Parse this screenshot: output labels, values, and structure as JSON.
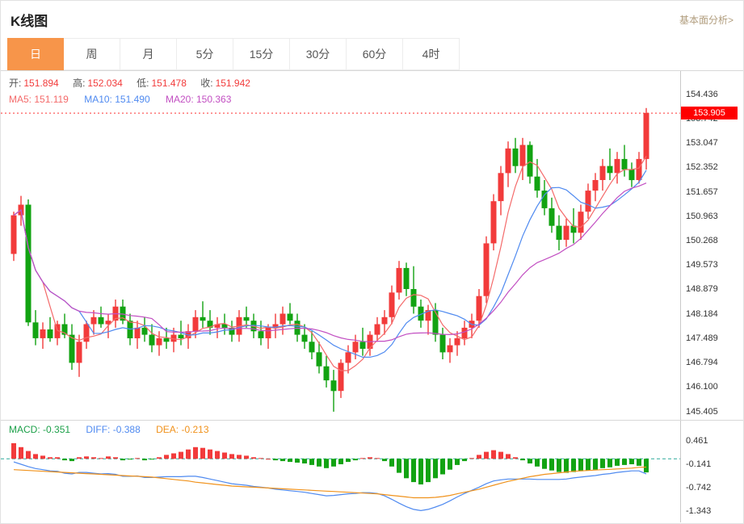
{
  "header": {
    "title": "K线图",
    "link": "基本面分析>"
  },
  "tabs": [
    {
      "label": "日",
      "active": true
    },
    {
      "label": "周",
      "active": false
    },
    {
      "label": "月",
      "active": false
    },
    {
      "label": "5分",
      "active": false
    },
    {
      "label": "15分",
      "active": false
    },
    {
      "label": "30分",
      "active": false
    },
    {
      "label": "60分",
      "active": false
    },
    {
      "label": "4时",
      "active": false
    }
  ],
  "info": {
    "ohlc": [
      {
        "label": "开:",
        "value": "151.894"
      },
      {
        "label": "高:",
        "value": "152.034"
      },
      {
        "label": "低:",
        "value": "151.478"
      },
      {
        "label": "收:",
        "value": "151.942"
      }
    ],
    "ma": [
      {
        "label": "MA5:",
        "value": "151.119",
        "color": "#f46a6a"
      },
      {
        "label": "MA10:",
        "value": "151.490",
        "color": "#4f8af0"
      },
      {
        "label": "MA20:",
        "value": "150.363",
        "color": "#c24fc2"
      }
    ]
  },
  "price_axis": [
    "154.436",
    "153.742",
    "153.047",
    "152.352",
    "151.657",
    "150.963",
    "150.268",
    "149.573",
    "148.879",
    "148.184",
    "147.489",
    "146.794",
    "146.100",
    "145.405"
  ],
  "current_price": "153.905",
  "macd_info": {
    "items": [
      {
        "label": "MACD:",
        "value": "-0.351",
        "color": "#1ca049"
      },
      {
        "label": "DIFF:",
        "value": "-0.388",
        "color": "#4f8af0"
      },
      {
        "label": "DEA:",
        "value": "-0.213",
        "color": "#f0921c"
      }
    ]
  },
  "macd_axis": [
    "0.461",
    "-0.141",
    "-0.742",
    "-1.343"
  ],
  "colors": {
    "accent": "#f7954a",
    "up": "#f23b3b",
    "down": "#12a312",
    "ma5": "#f46a6a",
    "ma10": "#4f8af0",
    "ma20": "#c24fc2",
    "diff": "#4f8af0",
    "dea": "#f0921c",
    "price_tag_bg": "#fe0000",
    "dotted_line": "#fe3333",
    "zero_line": "#2faa9b",
    "link": "#b09c7c"
  },
  "chart_data": [
    {
      "type": "candlestick",
      "title": "K线图",
      "interval": "日",
      "ylim": [
        145.405,
        154.9
      ],
      "y_ticks": [
        154.436,
        153.742,
        153.047,
        152.352,
        151.657,
        150.963,
        150.268,
        149.573,
        148.879,
        148.184,
        147.489,
        146.794,
        146.1,
        145.405
      ],
      "last_price": 153.905,
      "ma_periods": [
        5,
        10,
        20
      ],
      "ohlc": [
        [
          149.9,
          151.1,
          149.7,
          151.0
        ],
        [
          151.0,
          151.55,
          150.7,
          151.3
        ],
        [
          151.3,
          151.45,
          147.85,
          147.95
        ],
        [
          147.95,
          148.3,
          147.3,
          147.5
        ],
        [
          147.5,
          147.95,
          147.2,
          147.75
        ],
        [
          147.75,
          148.1,
          147.4,
          147.5
        ],
        [
          147.5,
          148.0,
          147.3,
          147.9
        ],
        [
          147.9,
          148.2,
          147.5,
          147.6
        ],
        [
          147.6,
          147.9,
          146.6,
          146.8
        ],
        [
          146.8,
          147.6,
          146.4,
          147.4
        ],
        [
          147.4,
          148.0,
          147.2,
          147.9
        ],
        [
          147.9,
          148.3,
          147.6,
          148.1
        ],
        [
          148.1,
          148.4,
          147.8,
          147.9
        ],
        [
          147.9,
          148.2,
          147.5,
          148.0
        ],
        [
          148.0,
          148.6,
          147.8,
          148.4
        ],
        [
          148.4,
          148.6,
          147.9,
          148.0
        ],
        [
          148.0,
          148.2,
          147.3,
          147.5
        ],
        [
          147.5,
          148.0,
          147.2,
          147.8
        ],
        [
          147.8,
          148.1,
          147.4,
          147.6
        ],
        [
          147.6,
          147.9,
          147.1,
          147.3
        ],
        [
          147.3,
          147.7,
          147.0,
          147.5
        ],
        [
          147.5,
          147.8,
          147.2,
          147.4
        ],
        [
          147.4,
          147.8,
          147.1,
          147.6
        ],
        [
          147.6,
          148.0,
          147.3,
          147.5
        ],
        [
          147.5,
          147.9,
          147.2,
          147.7
        ],
        [
          147.7,
          148.3,
          147.5,
          148.1
        ],
        [
          148.1,
          148.55,
          147.8,
          148.0
        ],
        [
          148.0,
          148.3,
          147.6,
          147.8
        ],
        [
          147.8,
          148.1,
          147.5,
          147.9
        ],
        [
          147.9,
          148.2,
          147.6,
          147.8
        ],
        [
          147.8,
          148.0,
          147.4,
          147.6
        ],
        [
          147.6,
          148.3,
          147.4,
          148.1
        ],
        [
          148.1,
          148.4,
          147.8,
          148.0
        ],
        [
          148.0,
          148.2,
          147.5,
          147.7
        ],
        [
          147.7,
          148.0,
          147.3,
          147.5
        ],
        [
          147.5,
          147.9,
          147.2,
          147.8
        ],
        [
          147.8,
          148.2,
          147.5,
          147.9
        ],
        [
          147.9,
          148.4,
          147.6,
          148.2
        ],
        [
          148.2,
          148.5,
          147.9,
          148.0
        ],
        [
          148.0,
          148.2,
          147.4,
          147.6
        ],
        [
          147.6,
          147.9,
          147.2,
          147.4
        ],
        [
          147.4,
          147.7,
          146.9,
          147.1
        ],
        [
          147.1,
          147.4,
          146.5,
          146.7
        ],
        [
          146.7,
          147.0,
          146.1,
          146.3
        ],
        [
          146.3,
          146.6,
          145.41,
          146.0
        ],
        [
          146.0,
          146.9,
          145.8,
          146.8
        ],
        [
          146.8,
          147.3,
          146.5,
          147.1
        ],
        [
          147.1,
          147.6,
          146.9,
          147.4
        ],
        [
          147.4,
          147.8,
          147.0,
          147.2
        ],
        [
          147.2,
          147.7,
          147.0,
          147.6
        ],
        [
          147.6,
          148.1,
          147.4,
          147.9
        ],
        [
          147.9,
          148.3,
          147.6,
          148.1
        ],
        [
          148.1,
          149.0,
          147.9,
          148.8
        ],
        [
          148.8,
          149.7,
          148.6,
          149.5
        ],
        [
          149.5,
          149.65,
          148.7,
          148.9
        ],
        [
          148.9,
          149.55,
          148.2,
          148.4
        ],
        [
          148.4,
          148.6,
          147.8,
          148.0
        ],
        [
          148.0,
          148.45,
          147.6,
          148.3
        ],
        [
          148.3,
          148.5,
          147.4,
          147.6
        ],
        [
          147.6,
          147.8,
          146.9,
          147.1
        ],
        [
          147.1,
          147.5,
          146.8,
          147.3
        ],
        [
          147.3,
          147.7,
          147.0,
          147.5
        ],
        [
          147.5,
          148.0,
          147.3,
          147.8
        ],
        [
          147.8,
          148.2,
          147.5,
          148.0
        ],
        [
          148.0,
          148.9,
          147.8,
          148.7
        ],
        [
          148.7,
          150.4,
          148.5,
          150.2
        ],
        [
          150.2,
          151.6,
          150.0,
          151.4
        ],
        [
          151.4,
          152.4,
          151.0,
          152.2
        ],
        [
          152.2,
          153.1,
          151.8,
          152.9
        ],
        [
          152.9,
          153.2,
          152.2,
          152.4
        ],
        [
          152.4,
          153.2,
          152.0,
          153.0
        ],
        [
          153.0,
          153.1,
          151.9,
          152.1
        ],
        [
          152.1,
          152.6,
          151.5,
          151.7
        ],
        [
          151.7,
          152.0,
          151.0,
          151.2
        ],
        [
          151.2,
          151.5,
          150.5,
          150.7
        ],
        [
          150.7,
          151.0,
          150.0,
          150.3
        ],
        [
          150.3,
          150.9,
          150.1,
          150.7
        ],
        [
          150.7,
          151.2,
          150.2,
          150.5
        ],
        [
          150.5,
          151.3,
          150.3,
          151.1
        ],
        [
          151.1,
          151.9,
          150.9,
          151.7
        ],
        [
          151.7,
          152.2,
          151.4,
          152.0
        ],
        [
          152.0,
          152.6,
          151.7,
          152.4
        ],
        [
          152.4,
          152.9,
          152.0,
          152.2
        ],
        [
          152.2,
          152.8,
          151.9,
          152.6
        ],
        [
          152.6,
          153.0,
          152.1,
          152.3
        ],
        [
          152.3,
          152.5,
          151.8,
          152.0
        ],
        [
          152.0,
          152.8,
          151.9,
          152.6
        ],
        [
          152.6,
          154.05,
          152.3,
          153.91
        ]
      ]
    },
    {
      "type": "bar",
      "name": "MACD",
      "y_ticks": [
        0.461,
        -0.141,
        -0.742,
        -1.343
      ],
      "histogram_rule": "2*(DIFF-DEA)",
      "last": {
        "MACD": -0.351,
        "DIFF": -0.388,
        "DEA": -0.213
      },
      "series": [
        {
          "name": "DIFF",
          "values": [
            -0.08,
            -0.14,
            -0.2,
            -0.25,
            -0.28,
            -0.31,
            -0.32,
            -0.37,
            -0.39,
            -0.35,
            -0.35,
            -0.37,
            -0.39,
            -0.38,
            -0.4,
            -0.45,
            -0.45,
            -0.44,
            -0.48,
            -0.48,
            -0.47,
            -0.46,
            -0.46,
            -0.46,
            -0.45,
            -0.45,
            -0.48,
            -0.52,
            -0.56,
            -0.6,
            -0.64,
            -0.66,
            -0.68,
            -0.71,
            -0.73,
            -0.75,
            -0.78,
            -0.8,
            -0.82,
            -0.84,
            -0.86,
            -0.89,
            -0.92,
            -0.95,
            -0.94,
            -0.92,
            -0.9,
            -0.89,
            -0.87,
            -0.87,
            -0.89,
            -0.95,
            -1.04,
            -1.14,
            -1.23,
            -1.3,
            -1.33,
            -1.3,
            -1.24,
            -1.17,
            -1.08,
            -0.98,
            -0.89,
            -0.81,
            -0.73,
            -0.64,
            -0.57,
            -0.54,
            -0.52,
            -0.52,
            -0.52,
            -0.52,
            -0.53,
            -0.53,
            -0.53,
            -0.53,
            -0.52,
            -0.49,
            -0.47,
            -0.45,
            -0.43,
            -0.4,
            -0.38,
            -0.35,
            -0.33,
            -0.31,
            -0.31,
            -0.388
          ]
        },
        {
          "name": "DEA",
          "values": [
            -0.28,
            -0.29,
            -0.3,
            -0.31,
            -0.32,
            -0.33,
            -0.34,
            -0.35,
            -0.36,
            -0.37,
            -0.38,
            -0.39,
            -0.4,
            -0.41,
            -0.42,
            -0.43,
            -0.44,
            -0.45,
            -0.46,
            -0.47,
            -0.49,
            -0.51,
            -0.53,
            -0.55,
            -0.57,
            -0.6,
            -0.62,
            -0.64,
            -0.66,
            -0.68,
            -0.7,
            -0.71,
            -0.72,
            -0.73,
            -0.74,
            -0.75,
            -0.76,
            -0.77,
            -0.78,
            -0.79,
            -0.8,
            -0.81,
            -0.82,
            -0.83,
            -0.84,
            -0.85,
            -0.86,
            -0.87,
            -0.88,
            -0.89,
            -0.9,
            -0.92,
            -0.94,
            -0.96,
            -0.98,
            -1.0,
            -1.0,
            -1.0,
            -0.99,
            -0.97,
            -0.94,
            -0.9,
            -0.86,
            -0.82,
            -0.78,
            -0.73,
            -0.68,
            -0.63,
            -0.58,
            -0.54,
            -0.5,
            -0.46,
            -0.43,
            -0.4,
            -0.38,
            -0.36,
            -0.34,
            -0.32,
            -0.31,
            -0.3,
            -0.29,
            -0.28,
            -0.27,
            -0.26,
            -0.25,
            -0.24,
            -0.22,
            -0.213
          ]
        }
      ]
    }
  ]
}
